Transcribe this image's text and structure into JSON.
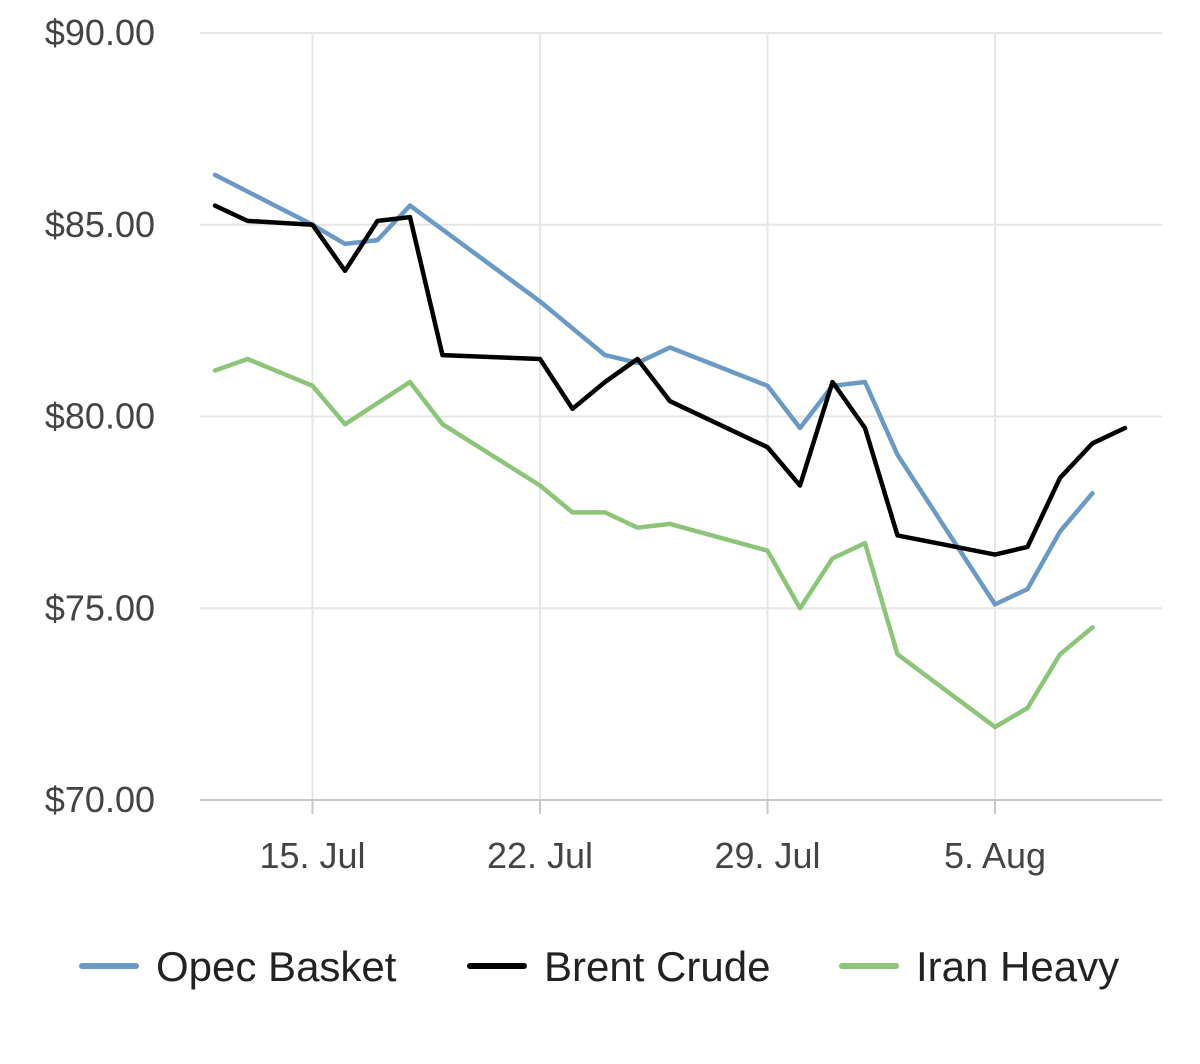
{
  "chart_data": {
    "type": "line",
    "y_axis": {
      "min": 70,
      "max": 90,
      "ticks": [
        70,
        75,
        80,
        85,
        90
      ],
      "tick_labels": [
        "$70.00",
        "$75.00",
        "$80.00",
        "$85.00",
        "$90.00"
      ]
    },
    "x_axis": {
      "min": "2024-07-12",
      "max": "2024-08-08",
      "ticks": [
        "2024-07-15",
        "2024-07-22",
        "2024-07-29",
        "2024-08-05"
      ],
      "tick_labels": [
        "15. Jul",
        "22. Jul",
        "29. Jul",
        "5. Aug"
      ]
    },
    "grid": true,
    "legend_position": "bottom",
    "series": [
      {
        "name": "Opec Basket",
        "color": "#6a9ac4",
        "points": [
          [
            "2024-07-12",
            86.3
          ],
          [
            "2024-07-15",
            85.0
          ],
          [
            "2024-07-16",
            84.5
          ],
          [
            "2024-07-17",
            84.6
          ],
          [
            "2024-07-18",
            85.5
          ],
          [
            "2024-07-22",
            83.0
          ],
          [
            "2024-07-23",
            82.3
          ],
          [
            "2024-07-24",
            81.6
          ],
          [
            "2024-07-25",
            81.4
          ],
          [
            "2024-07-26",
            81.8
          ],
          [
            "2024-07-29",
            80.8
          ],
          [
            "2024-07-30",
            79.7
          ],
          [
            "2024-07-31",
            80.8
          ],
          [
            "2024-08-01",
            80.9
          ],
          [
            "2024-08-02",
            79.0
          ],
          [
            "2024-08-05",
            75.1
          ],
          [
            "2024-08-06",
            75.5
          ],
          [
            "2024-08-07",
            77.0
          ],
          [
            "2024-08-08",
            78.0
          ]
        ]
      },
      {
        "name": "Brent Crude",
        "color": "#000000",
        "points": [
          [
            "2024-07-12",
            85.5
          ],
          [
            "2024-07-13",
            85.1
          ],
          [
            "2024-07-15",
            85.0
          ],
          [
            "2024-07-16",
            83.8
          ],
          [
            "2024-07-17",
            85.1
          ],
          [
            "2024-07-18",
            85.2
          ],
          [
            "2024-07-19",
            81.6
          ],
          [
            "2024-07-22",
            81.5
          ],
          [
            "2024-07-23",
            80.2
          ],
          [
            "2024-07-24",
            80.9
          ],
          [
            "2024-07-25",
            81.5
          ],
          [
            "2024-07-26",
            80.4
          ],
          [
            "2024-07-29",
            79.2
          ],
          [
            "2024-07-30",
            78.2
          ],
          [
            "2024-07-31",
            80.9
          ],
          [
            "2024-08-01",
            79.7
          ],
          [
            "2024-08-02",
            76.9
          ],
          [
            "2024-08-05",
            76.4
          ],
          [
            "2024-08-06",
            76.6
          ],
          [
            "2024-08-07",
            78.4
          ],
          [
            "2024-08-08",
            79.3
          ],
          [
            "2024-08-09",
            79.7
          ]
        ]
      },
      {
        "name": "Iran Heavy",
        "color": "#8cc47a",
        "points": [
          [
            "2024-07-12",
            81.2
          ],
          [
            "2024-07-13",
            81.5
          ],
          [
            "2024-07-15",
            80.8
          ],
          [
            "2024-07-16",
            79.8
          ],
          [
            "2024-07-18",
            80.9
          ],
          [
            "2024-07-19",
            79.8
          ],
          [
            "2024-07-22",
            78.2
          ],
          [
            "2024-07-23",
            77.5
          ],
          [
            "2024-07-24",
            77.5
          ],
          [
            "2024-07-25",
            77.1
          ],
          [
            "2024-07-26",
            77.2
          ],
          [
            "2024-07-29",
            76.5
          ],
          [
            "2024-07-30",
            75.0
          ],
          [
            "2024-07-31",
            76.3
          ],
          [
            "2024-08-01",
            76.7
          ],
          [
            "2024-08-02",
            73.8
          ],
          [
            "2024-08-05",
            71.9
          ],
          [
            "2024-08-06",
            72.4
          ],
          [
            "2024-08-07",
            73.8
          ],
          [
            "2024-08-08",
            74.5
          ]
        ]
      }
    ]
  }
}
